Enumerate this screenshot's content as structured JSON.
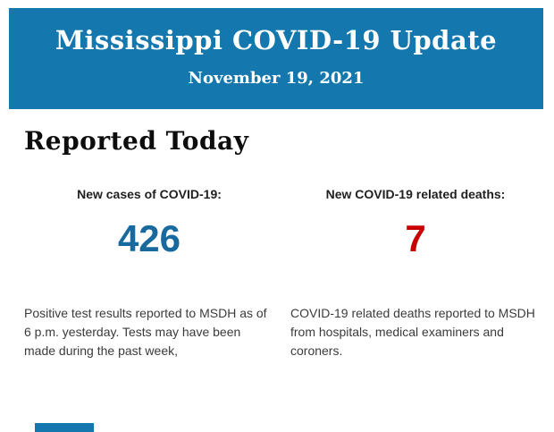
{
  "colors": {
    "banner_blue": "#1478ae",
    "cases_blue": "#17699e",
    "deaths_red": "#c80000",
    "heading_black": "#0d0d0d",
    "label_dark": "#1f1f1f",
    "body_gray": "#3b3b3b"
  },
  "header": {
    "title": "Mississippi COVID-19 Update",
    "date": "November 19, 2021"
  },
  "main": {
    "section_title": "Reported Today",
    "stats": [
      {
        "label": "New cases of COVID-19:",
        "value": "426",
        "description": "Positive test results reported to MSDH as of 6 p.m. yesterday. Tests may have been made during the past week,"
      },
      {
        "label": "New COVID-19 related deaths:",
        "value": "7",
        "description": "COVID-19 related deaths reported to MSDH from hospitals, medical examiners and coroners."
      }
    ]
  }
}
